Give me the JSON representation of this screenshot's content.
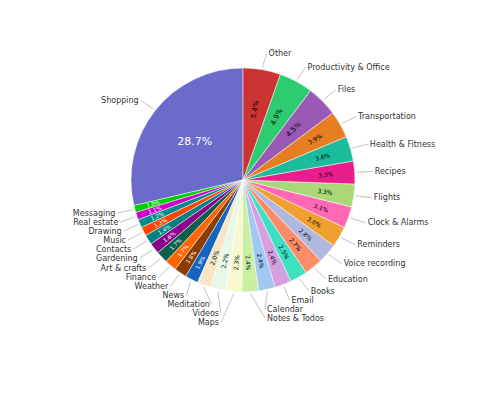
{
  "chart_data": {
    "type": "pie",
    "categories": [
      "Shopping",
      "Messaging",
      "Real estate",
      "Drawing",
      "Music",
      "Contacts",
      "Gardening",
      "Art & crafts",
      "Finance",
      "Weather",
      "News",
      "Meditation",
      "Videos",
      "Maps",
      "Notes & Todos",
      "Calendar",
      "Email",
      "Books",
      "Education",
      "Voice recording",
      "Reminders",
      "Clock & Alarms",
      "Flights",
      "Recipes",
      "Health & Fitness",
      "Transportation",
      "Files",
      "Productivity & Office",
      "Other"
    ],
    "values": [
      28.7,
      1.0,
      1.1,
      1.2,
      1.3,
      1.4,
      1.6,
      1.7,
      1.7,
      1.8,
      1.9,
      2.0,
      2.2,
      2.3,
      2.4,
      2.4,
      2.4,
      2.5,
      2.7,
      2.8,
      3.0,
      3.1,
      3.3,
      3.3,
      3.6,
      3.9,
      4.5,
      4.9,
      5.4
    ],
    "value_labels": [
      "28.7%",
      "1.0%",
      "1.1%",
      "1.2%",
      "1.3%",
      "1.4%",
      "1.6%",
      "1.7%",
      "1.7%",
      "1.8%",
      "1.9%",
      "2.0%",
      "2.2%",
      "2.3%",
      "2.4%",
      "2.4%",
      "2.4%",
      "2.5%",
      "2.7%",
      "2.8%",
      "3.0%",
      "3.1%",
      "3.3%",
      "3.3%",
      "3.6%",
      "3.9%",
      "4.5%",
      "4.9%",
      "5.4%"
    ],
    "colors": [
      "#6b6bcc",
      "#00cc00",
      "#cc00cc",
      "#008b8b",
      "#ff4500",
      "#008080",
      "#8b008b",
      "#0d5e4a",
      "#ff6600",
      "#8b3a00",
      "#1565c0",
      "#f5e6c8",
      "#e8f8e8",
      "#f8f8d0",
      "#c8f0a0",
      "#a0c8f0",
      "#d4a0e0",
      "#3de0c0",
      "#ff8c69",
      "#b0b8e0",
      "#f0a030",
      "#ff69b4",
      "#a8d878",
      "#e91e8c",
      "#1abc9c",
      "#e67e22",
      "#9b59b6",
      "#2ecc71",
      "#cc3333"
    ],
    "data_labels": true
  }
}
